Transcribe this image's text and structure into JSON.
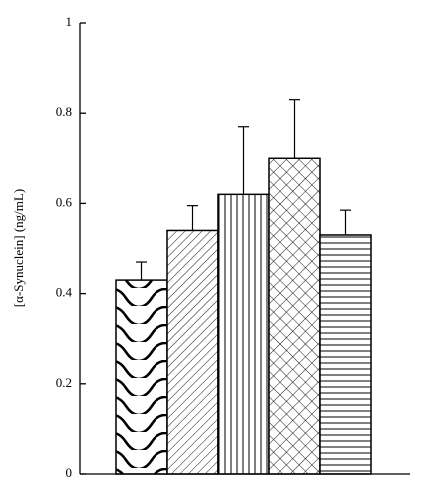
{
  "chart_data": {
    "type": "bar",
    "title": "",
    "xlabel": "",
    "ylabel": "[α-Synuclein] (ng/mL)",
    "ylim": [
      0,
      1
    ],
    "yticks": [
      "0",
      "0.2",
      "0.4",
      "0.6",
      "0.8",
      "1"
    ],
    "grid": false,
    "legend": "none",
    "series": [
      {
        "values": [
          0.43,
          0.54,
          0.62,
          0.7,
          0.53
        ],
        "errors": [
          0.04,
          0.055,
          0.15,
          0.13,
          0.055
        ],
        "patterns": [
          "waves",
          "diagonal",
          "vertical",
          "crosshatch",
          "horizontal"
        ]
      }
    ]
  }
}
